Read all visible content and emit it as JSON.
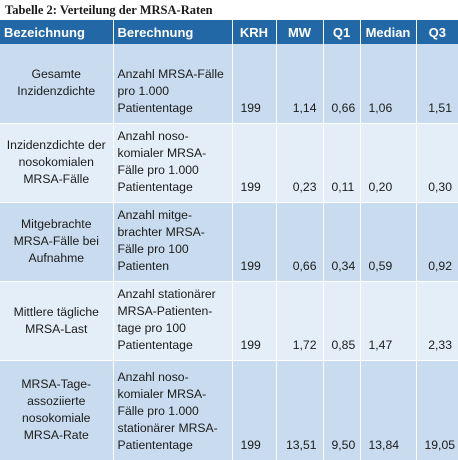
{
  "caption": "Tabelle 2: Verteilung der MRSA-Raten",
  "headers": [
    "Bezeichnung",
    "Berechnung",
    "KRH",
    "MW",
    "Q1",
    "Median",
    "Q3"
  ],
  "rows": [
    {
      "name": "Gesamte\nInzidenzdichte",
      "calc": "Anzahl MRSA-Fälle\npro 1.000\nPatiententage",
      "krh": "199",
      "mw": "1,14",
      "q1": "0,66",
      "median": "1,06",
      "q3": "1,51"
    },
    {
      "name": "Inzidenzdichte der\nnosokomialen\nMRSA-Fälle",
      "calc": "Anzahl noso-\nkomialer MRSA-\nFälle pro 1.000\nPatiententage",
      "krh": "199",
      "mw": "0,23",
      "q1": "0,11",
      "median": "0,20",
      "q3": "0,30"
    },
    {
      "name": "Mitgebrachte\nMRSA-Fälle bei\nAufnahme",
      "calc": "Anzahl mitge-\nbrachter MRSA-\nFälle pro 100\nPatienten",
      "krh": "199",
      "mw": "0,66",
      "q1": "0,34",
      "median": "0,59",
      "q3": "0,92"
    },
    {
      "name": "Mittlere tägliche\nMRSA-Last",
      "calc": "Anzahl stationärer\nMRSA-Patienten-\ntage pro 100\nPatiententage",
      "krh": "199",
      "mw": "1,72",
      "q1": "0,85",
      "median": "1,47",
      "q3": "2,33"
    },
    {
      "name": "MRSA-Tage-\nassoziierte\nnosokomiale\nMRSA-Rate",
      "calc": "Anzahl noso-\nkomialer MRSA-\nFälle pro 1.000\nstationärer MRSA-\nPatiententage",
      "krh": "199",
      "mw": "13,51",
      "q1": "9,50",
      "median": "13,84",
      "q3": "19,05"
    }
  ]
}
